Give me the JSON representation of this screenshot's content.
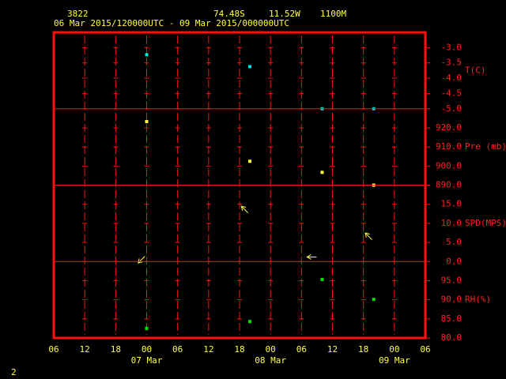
{
  "header": {
    "station": "3822",
    "lat": "74.48S",
    "lon": "11.52W",
    "elev": "1100M",
    "period": "06 Mar 2015/120000UTC - 09 Mar 2015/000000UTC"
  },
  "page_number": "2",
  "chart_data": [
    {
      "type": "scatter",
      "ylabel": "T(C)",
      "color": "#00e0e0",
      "x": [
        18,
        38,
        52,
        62
      ],
      "values": [
        -3.23,
        -3.62,
        -5.0,
        -5.0
      ],
      "ylim": [
        -5,
        -2.5
      ],
      "yticks": [
        {
          "value": -5,
          "label": "-5.0"
        },
        {
          "value": -4.5,
          "label": "-4.5"
        },
        {
          "value": -4,
          "label": "-4.0"
        },
        {
          "value": -3.5,
          "label": "-3.5"
        },
        {
          "value": -3,
          "label": "-3.0"
        }
      ]
    },
    {
      "type": "scatter",
      "ylabel": "Pre (mb)",
      "color": "#ffff40",
      "x": [
        18,
        38,
        52,
        62
      ],
      "values": [
        923.3,
        902.5,
        896.7,
        890
      ],
      "ylim": [
        890,
        930
      ],
      "yticks": [
        {
          "value": 890,
          "label": "890.0"
        },
        {
          "value": 900,
          "label": "900.0"
        },
        {
          "value": 910,
          "label": "910.0"
        },
        {
          "value": 920,
          "label": "920.0"
        }
      ]
    },
    {
      "type": "vector",
      "ylabel": "SPD(MPS)",
      "color": "#ffff40",
      "x": [
        17,
        37,
        50,
        61
      ],
      "values": [
        0.5,
        13.6,
        1.2,
        6.6
      ],
      "directions": [
        225,
        315,
        270,
        315
      ],
      "ylim": [
        0,
        20
      ],
      "yticks": [
        {
          "value": 0,
          "label": "0.0"
        },
        {
          "value": 5,
          "label": "5.0"
        },
        {
          "value": 10,
          "label": "10.0"
        },
        {
          "value": 15,
          "label": "15.0"
        }
      ]
    },
    {
      "type": "scatter",
      "ylabel": "RH(%)",
      "color": "#00e000",
      "x": [
        18,
        38,
        52,
        62
      ],
      "values": [
        82.5,
        84.3,
        95.3,
        90.1
      ],
      "ylim": [
        80,
        100
      ],
      "yticks": [
        {
          "value": 80,
          "label": "80.0"
        },
        {
          "value": 85,
          "label": "85.0"
        },
        {
          "value": 90,
          "label": "90.0"
        },
        {
          "value": 95,
          "label": "95.0"
        }
      ],
      "xlim": [
        0,
        72
      ],
      "xticks": [
        {
          "value": 0,
          "label": "06"
        },
        {
          "value": 6,
          "label": "12"
        },
        {
          "value": 12,
          "label": "18"
        },
        {
          "value": 18,
          "label": "00"
        },
        {
          "value": 24,
          "label": "06"
        },
        {
          "value": 30,
          "label": "12"
        },
        {
          "value": 36,
          "label": "18"
        },
        {
          "value": 42,
          "label": "00"
        },
        {
          "value": 48,
          "label": "06"
        },
        {
          "value": 54,
          "label": "12"
        },
        {
          "value": 60,
          "label": "18"
        },
        {
          "value": 66,
          "label": "00"
        },
        {
          "value": 72,
          "label": "06"
        }
      ],
      "date_ticks": [
        {
          "value": 18,
          "label": "07 Mar"
        },
        {
          "value": 42,
          "label": "08 Mar"
        },
        {
          "value": 66,
          "label": "09 Mar"
        }
      ]
    }
  ]
}
